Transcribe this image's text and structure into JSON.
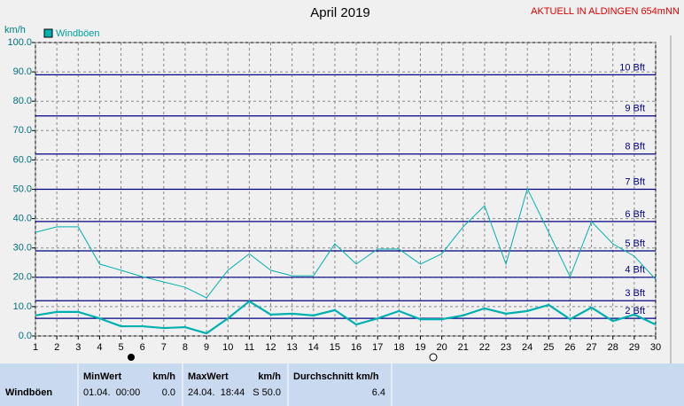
{
  "chart_data": {
    "type": "line",
    "title": "April 2019",
    "subtitle": "AKTUELL IN ALDINGEN 654mNN",
    "y_label": "km/h",
    "x": [
      1,
      2,
      3,
      4,
      5,
      6,
      7,
      8,
      9,
      10,
      11,
      12,
      13,
      14,
      15,
      16,
      17,
      18,
      19,
      20,
      21,
      22,
      23,
      24,
      25,
      26,
      27,
      28,
      29,
      30
    ],
    "xlim": [
      1,
      30
    ],
    "xticks": [
      1,
      2,
      3,
      4,
      5,
      6,
      7,
      8,
      9,
      10,
      11,
      12,
      13,
      14,
      15,
      16,
      17,
      18,
      19,
      20,
      21,
      22,
      23,
      24,
      25,
      26,
      27,
      28,
      29,
      30
    ],
    "ylim": [
      0,
      100
    ],
    "yticks": [
      {
        "value": 0,
        "label": "0.0"
      },
      {
        "value": 10,
        "label": "10.0"
      },
      {
        "value": 20,
        "label": "20.0"
      },
      {
        "value": 30,
        "label": "30.0"
      },
      {
        "value": 40,
        "label": "40.0"
      },
      {
        "value": 50,
        "label": "50.0"
      },
      {
        "value": 60,
        "label": "60.0"
      },
      {
        "value": 70,
        "label": "70.0"
      },
      {
        "value": 80,
        "label": "80.0"
      },
      {
        "value": 90,
        "label": "90.0"
      },
      {
        "value": 100,
        "label": "100.0"
      }
    ],
    "grid": true,
    "series": [
      {
        "name": "Windböen",
        "color": "#00b0b0",
        "values": [
          35.3,
          37.2,
          37.2,
          24.5,
          22.4,
          20.2,
          18.4,
          16.6,
          13,
          22.4,
          28,
          22.4,
          20.5,
          20.5,
          31.4,
          24.5,
          29.6,
          29.6,
          24.5,
          28,
          37.2,
          44.4,
          24.5,
          50.2,
          35.3,
          20.2,
          39,
          31.4,
          27.2,
          19.3
        ]
      },
      {
        "color": "#00b0b0",
        "values": [
          7,
          8.2,
          8.2,
          6,
          3.3,
          3.3,
          2.7,
          3,
          0.9,
          6,
          11.8,
          7.3,
          7.6,
          7,
          8.8,
          3.9,
          6,
          8.5,
          5.7,
          5.7,
          7,
          9.4,
          7.6,
          8.5,
          10.6,
          5.7,
          9.7,
          5.1,
          7.3,
          3.9
        ]
      }
    ],
    "reference_lines": [
      {
        "value": 6,
        "label": "2 Bft"
      },
      {
        "value": 12,
        "label": "3 Bft"
      },
      {
        "value": 20,
        "label": "4 Bft"
      },
      {
        "value": 29,
        "label": "5 Bft"
      },
      {
        "value": 39,
        "label": "6 Bft"
      },
      {
        "value": 50,
        "label": "7 Bft"
      },
      {
        "value": 62,
        "label": "8 Bft"
      },
      {
        "value": 75,
        "label": "9 Bft"
      },
      {
        "value": 89,
        "label": "10 Bft"
      }
    ],
    "reference_color": "#000080"
  },
  "table": {
    "columns": [
      "MinWert",
      "km/h",
      "MaxWert",
      "km/h",
      "Durchschnitt km/h"
    ],
    "row": [
      "Windböen",
      "01.04.  00:00",
      "0.0",
      "24.04.  18:44",
      "S 50.0",
      "6.4"
    ]
  }
}
